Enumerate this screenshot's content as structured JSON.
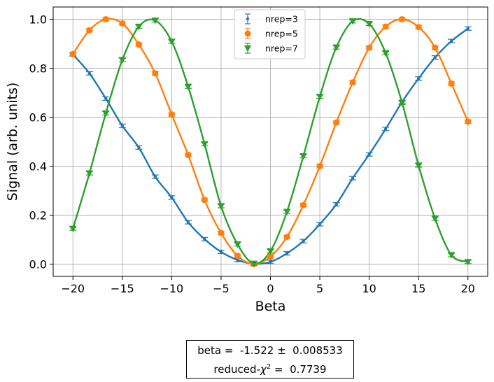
{
  "chart_data": {
    "type": "scatter",
    "xlabel": "Beta",
    "ylabel": "Signal (arb. units)",
    "xlim": [
      -22,
      22
    ],
    "ylim": [
      -0.05,
      1.05
    ],
    "xticks": [
      -20,
      -15,
      -10,
      -5,
      0,
      5,
      10,
      15,
      20
    ],
    "yticks": [
      0.0,
      0.2,
      0.4,
      0.6,
      0.8,
      1.0
    ],
    "xtick_labels": [
      "−20",
      "−15",
      "−10",
      "−5",
      "0",
      "5",
      "10",
      "15",
      "20"
    ],
    "ytick_labels": [
      "0.0",
      "0.2",
      "0.4",
      "0.6",
      "0.8",
      "1.0"
    ],
    "grid": true,
    "legend_position": "top-center",
    "x": [
      -20.0,
      -18.33,
      -16.67,
      -15.0,
      -13.33,
      -11.67,
      -10.0,
      -8.33,
      -6.67,
      -5.0,
      -3.33,
      -1.67,
      0.0,
      1.67,
      3.33,
      5.0,
      6.67,
      8.33,
      10.0,
      11.67,
      13.33,
      15.0,
      16.67,
      18.33,
      20.0
    ],
    "series": [
      {
        "name": "nrep=3",
        "color": "#1f77b4",
        "marker": "point",
        "values": [
          0.856,
          0.779,
          0.676,
          0.565,
          0.476,
          0.357,
          0.272,
          0.171,
          0.102,
          0.05,
          0.017,
          0.001,
          0.009,
          0.044,
          0.094,
          0.163,
          0.244,
          0.351,
          0.448,
          0.552,
          0.662,
          0.758,
          0.844,
          0.911,
          0.962
        ],
        "error": 0.007
      },
      {
        "name": "nrep=5",
        "color": "#ff7f0e",
        "marker": "circle",
        "values": [
          0.858,
          0.955,
          1.0,
          0.983,
          0.897,
          0.779,
          0.611,
          0.446,
          0.262,
          0.127,
          0.034,
          0.0,
          0.031,
          0.111,
          0.241,
          0.4,
          0.578,
          0.742,
          0.884,
          0.97,
          1.0,
          0.968,
          0.884,
          0.737,
          0.582
        ],
        "error": 0.007
      },
      {
        "name": "nrep=7",
        "color": "#2ca02c",
        "marker": "triangle-down",
        "values": [
          0.145,
          0.371,
          0.616,
          0.834,
          0.97,
          0.995,
          0.909,
          0.725,
          0.49,
          0.237,
          0.081,
          0.002,
          0.053,
          0.214,
          0.441,
          0.684,
          0.885,
          0.992,
          0.981,
          0.862,
          0.659,
          0.403,
          0.186,
          0.037,
          0.009
        ],
        "error": 0.007
      }
    ]
  },
  "fit": {
    "line1": "beta =  -1.522 ±  0.008533",
    "line2_prefix": "reduced-",
    "line2_symbol": "χ",
    "line2_sup": "2",
    "line2_suffix": " =  0.7739"
  }
}
